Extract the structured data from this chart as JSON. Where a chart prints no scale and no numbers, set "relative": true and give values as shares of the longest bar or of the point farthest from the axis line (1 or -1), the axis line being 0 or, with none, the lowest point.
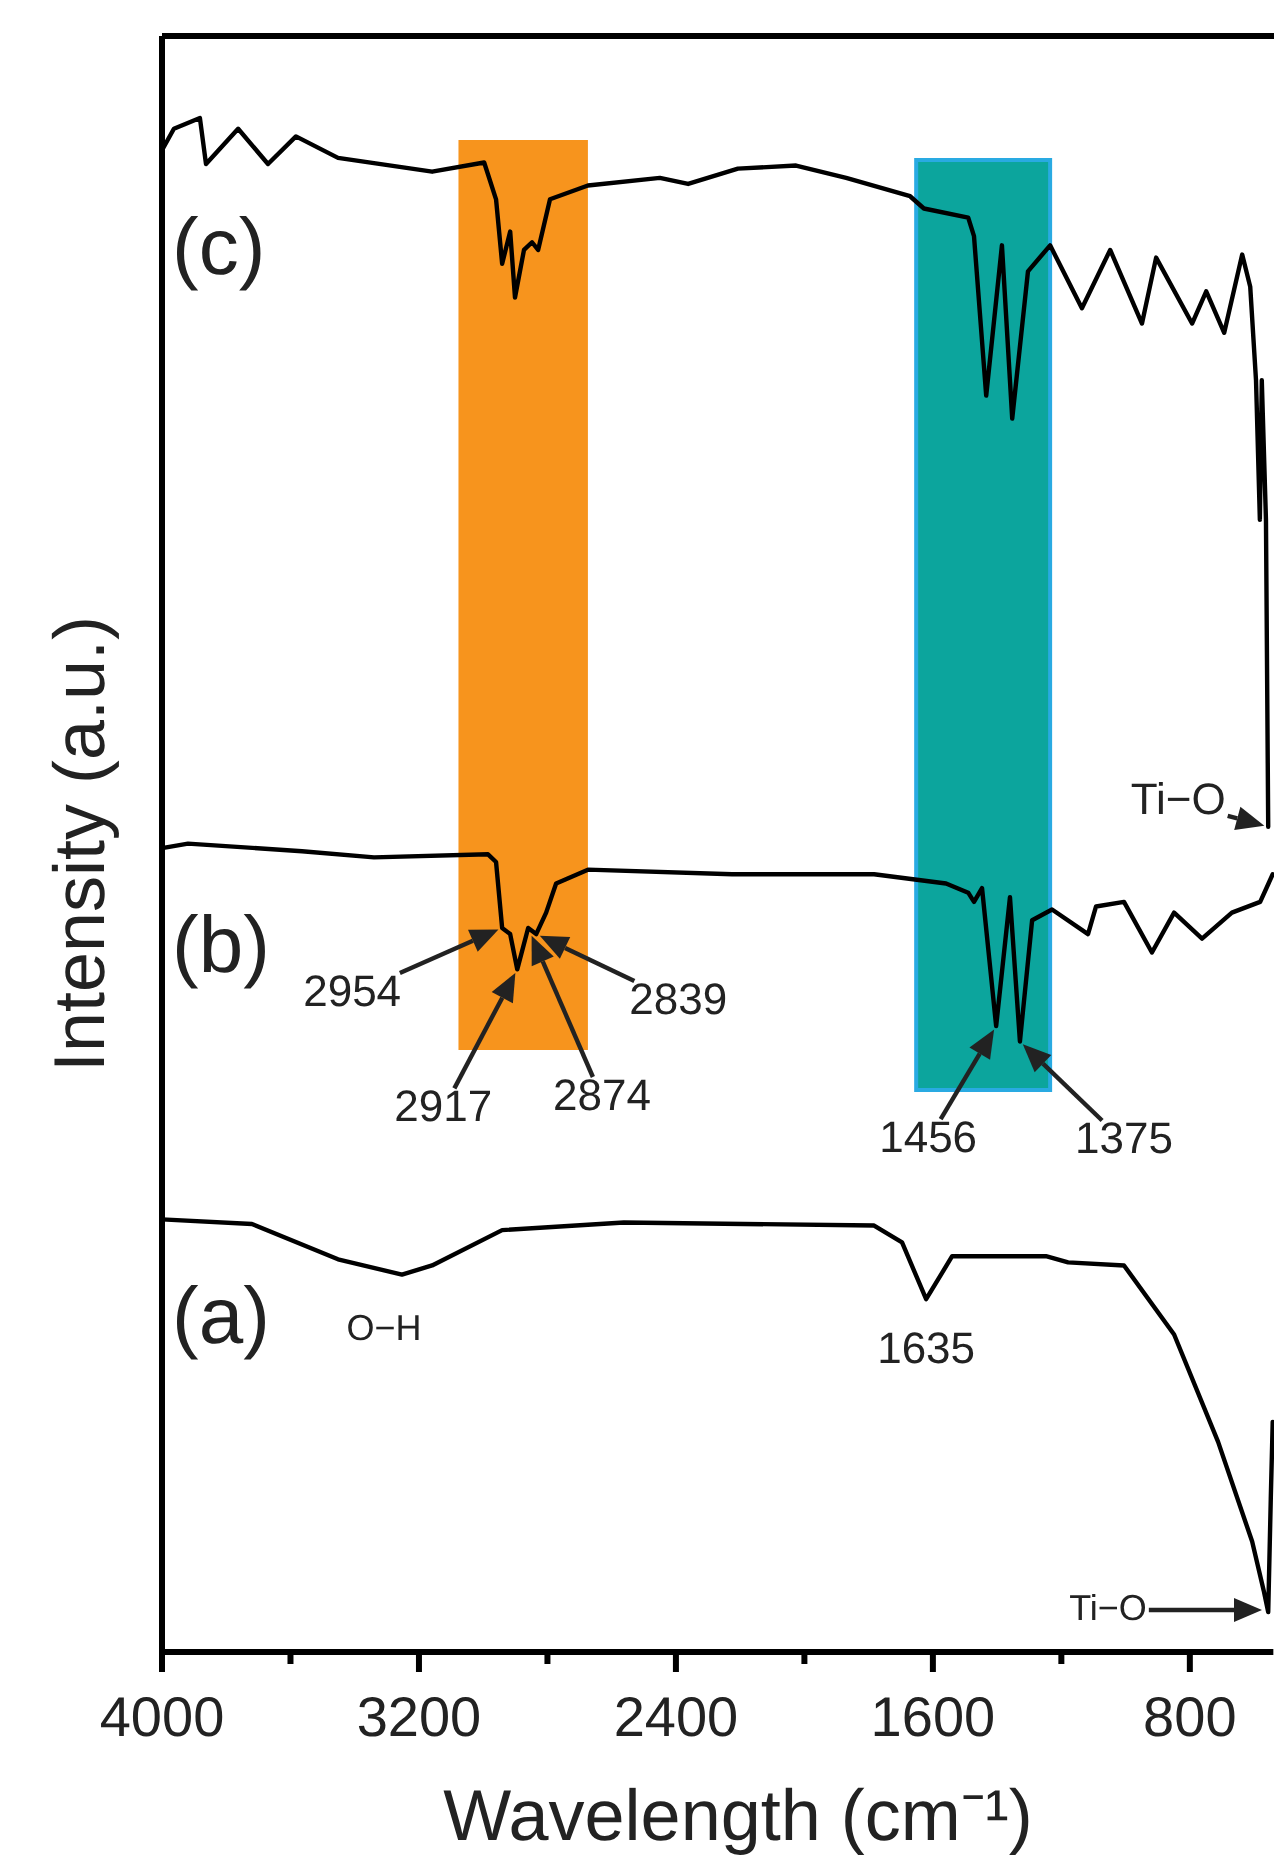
{
  "chart_data": {
    "type": "line",
    "relative": true,
    "xlabel": "Wavelength (cm⁻¹)",
    "ylabel": "Intensity (a.u.)",
    "xlim": [
      4000,
      540
    ],
    "xticks": [
      4000,
      {
        "value": 3600,
        "label": null
      },
      3200,
      {
        "value": 2800,
        "label": null
      },
      2400,
      {
        "value": 2000,
        "label": null
      },
      1600,
      {
        "value": 1200,
        "label": null
      },
      800
    ],
    "grid": false,
    "legend": false,
    "marker": "none",
    "line_style": "solid",
    "series": [
      {
        "name": "(a)",
        "color": "#000000",
        "x": [
          4000,
          3720,
          3452,
          3253,
          3159,
          2941,
          2562,
          1783,
          1696,
          1621,
          1540,
          1248,
          1179,
          1005,
          849,
          712,
          606,
          570,
          556,
          548,
          542
        ],
        "values": [
          0.282,
          0.279,
          0.256,
          0.246,
          0.252,
          0.275,
          0.28,
          0.278,
          0.267,
          0.23,
          0.258,
          0.258,
          0.254,
          0.252,
          0.207,
          0.137,
          0.072,
          0.04,
          0.026,
          0.1,
          0.15
        ]
      },
      {
        "name": "(b)",
        "color": "#000000",
        "x": [
          4000,
          3919,
          3564,
          3340,
          2985,
          2960,
          2941,
          2916,
          2894,
          2860,
          2835,
          2804,
          2773,
          2674,
          2225,
          1783,
          1559,
          1490,
          1472,
          1447,
          1403,
          1360,
          1329,
          1291,
          1229,
          1117,
          1092,
          1005,
          918,
          849,
          762,
          669,
          581,
          542
        ],
        "values": [
          0.524,
          0.527,
          0.522,
          0.518,
          0.52,
          0.515,
          0.472,
          0.468,
          0.445,
          0.472,
          0.468,
          0.482,
          0.501,
          0.51,
          0.507,
          0.507,
          0.501,
          0.495,
          0.489,
          0.498,
          0.408,
          0.492,
          0.398,
          0.477,
          0.484,
          0.468,
          0.486,
          0.489,
          0.456,
          0.482,
          0.465,
          0.482,
          0.489,
          0.507
        ]
      },
      {
        "name": "(c)",
        "color": "#000000",
        "x": [
          4000,
          3963,
          3882,
          3863,
          3763,
          3670,
          3583,
          3452,
          3159,
          2997,
          2960,
          2941,
          2916,
          2901,
          2873,
          2848,
          2829,
          2792,
          2674,
          2450,
          2362,
          2207,
          2026,
          1870,
          1671,
          1628,
          1490,
          1472,
          1434,
          1385,
          1353,
          1304,
          1235,
          1136,
          1048,
          949,
          905,
          793,
          749,
          693,
          637,
          612,
          594,
          582,
          576,
          563,
          556
        ],
        "values": [
          0.979,
          0.993,
          1.0,
          0.97,
          0.993,
          0.97,
          0.988,
          0.974,
          0.965,
          0.971,
          0.947,
          0.905,
          0.926,
          0.883,
          0.914,
          0.919,
          0.914,
          0.947,
          0.956,
          0.961,
          0.957,
          0.967,
          0.969,
          0.961,
          0.949,
          0.941,
          0.935,
          0.923,
          0.819,
          0.917,
          0.804,
          0.9,
          0.917,
          0.876,
          0.914,
          0.866,
          0.909,
          0.866,
          0.887,
          0.86,
          0.911,
          0.89,
          0.829,
          0.738,
          0.829,
          0.738,
          0.538
        ]
      }
    ],
    "bands": [
      {
        "axis": "x",
        "from": 3077,
        "to": 2674,
        "color": "#f7941d"
      },
      {
        "axis": "x",
        "from": 1652,
        "to": 1235,
        "color": "#0ca59d"
      }
    ],
    "annotations": [
      {
        "text": "Ti−O",
        "x": 556,
        "y": 0.538
      },
      {
        "text": "2954",
        "x": 2941,
        "y": 0.472
      },
      {
        "text": "2917",
        "x": 2894,
        "y": 0.445
      },
      "2874",
      {
        "text": "2839",
        "x": 2835,
        "y": 0.468
      },
      {
        "text": "1456",
        "x": 1403,
        "y": 0.408
      },
      {
        "text": "1375",
        "x": 1329,
        "y": 0.398
      },
      {
        "text": "O−H",
        "x": 3253,
        "y": 0.246
      },
      {
        "text": "1635",
        "x": 1621,
        "y": 0.23
      },
      "Ti−O"
    ]
  }
}
